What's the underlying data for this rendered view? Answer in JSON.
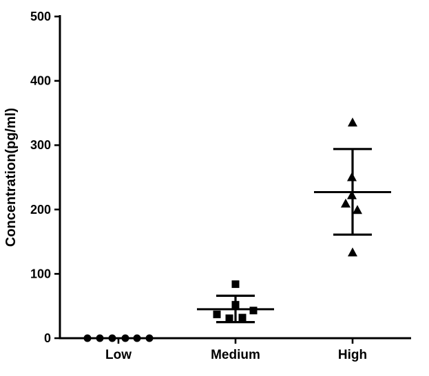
{
  "chart_data": {
    "type": "scatter",
    "subtype": "column-scatter-dot-plot",
    "title": "",
    "xlabel": "",
    "ylabel": "Concentration(pg/ml)",
    "ylim": [
      0,
      500
    ],
    "yticks": [
      0,
      100,
      200,
      300,
      400,
      500
    ],
    "categories": [
      "Low",
      "Medium",
      "High"
    ],
    "grid": false,
    "legend": false,
    "marker_color": "#000000",
    "axis_color": "#000000",
    "background_color": "#ffffff",
    "groups": [
      {
        "label": "Low",
        "marker": "circle",
        "values": [
          0,
          0,
          0,
          0,
          0,
          0
        ],
        "x_offsets": [
          -45,
          -27,
          -9,
          10,
          27,
          45
        ],
        "mean": null,
        "sd_low": null,
        "sd_high": null
      },
      {
        "label": "Medium",
        "marker": "square",
        "values": [
          84,
          52,
          43,
          37,
          32,
          31
        ],
        "x_offsets": [
          0,
          0,
          26,
          -27,
          10,
          -9
        ],
        "mean": 45,
        "sd_low": 25,
        "sd_high": 66
      },
      {
        "label": "High",
        "marker": "triangle",
        "values": [
          335,
          250,
          222,
          209,
          199,
          133
        ],
        "x_offsets": [
          0,
          -1,
          -1,
          -10,
          7,
          0
        ],
        "mean": 227,
        "sd_low": 161,
        "sd_high": 294
      }
    ]
  }
}
